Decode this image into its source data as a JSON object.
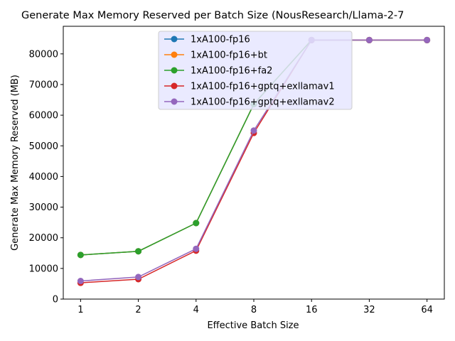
{
  "chart_data": {
    "type": "line",
    "title": "Generate Max Memory Reserved per Batch Size (NousResearch/Llama-2-7",
    "xlabel": "Effective Batch Size",
    "ylabel": "Generate Max Memory Reserved (MB)",
    "x_scale": "log2",
    "x": [
      1,
      2,
      4,
      8,
      16,
      32,
      64
    ],
    "x_tick_labels": [
      "1",
      "2",
      "4",
      "8",
      "16",
      "32",
      "64"
    ],
    "ylim": [
      0,
      89000
    ],
    "y_ticks": [
      0,
      10000,
      20000,
      30000,
      40000,
      50000,
      60000,
      70000,
      80000
    ],
    "grid": false,
    "legend_position": "top-center",
    "series": [
      {
        "name": "1xA100-fp16",
        "color": "#1f77b4",
        "values": [
          14400,
          15600,
          24800,
          63600,
          84500,
          84500,
          84500
        ]
      },
      {
        "name": "1xA100-fp16+bt",
        "color": "#ff7f0e",
        "values": [
          14400,
          15600,
          24800,
          63600,
          84500,
          84500,
          84500
        ]
      },
      {
        "name": "1xA100-fp16+fa2",
        "color": "#2ca02c",
        "values": [
          14400,
          15600,
          24800,
          63600,
          84500,
          84500,
          84500
        ]
      },
      {
        "name": "1xA100-fp16+gptq+exllamav1",
        "color": "#d62728",
        "values": [
          5300,
          6500,
          15800,
          54200,
          84500,
          84500,
          84500
        ]
      },
      {
        "name": "1xA100-fp16+gptq+exllamav2",
        "color": "#9467bd",
        "values": [
          5900,
          7200,
          16400,
          55000,
          84500,
          84500,
          84500
        ]
      }
    ]
  }
}
